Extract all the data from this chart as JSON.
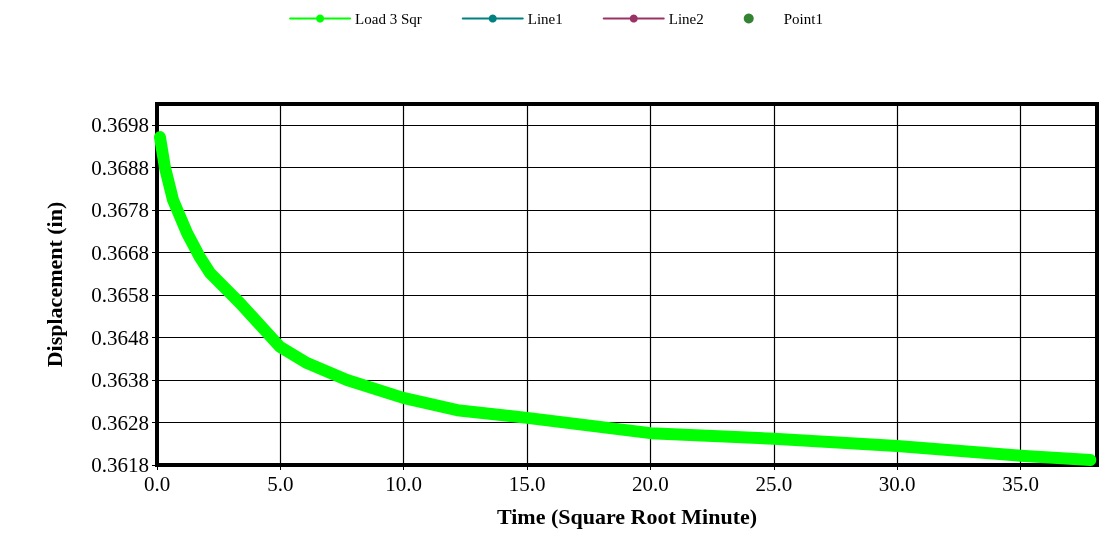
{
  "chart_data": {
    "type": "line",
    "xlabel": "Time (Square Root Minute)",
    "ylabel": "Displacement (in)",
    "xlim": [
      0,
      38.1
    ],
    "ylim": [
      0.3618,
      0.3703
    ],
    "xticks": [
      {
        "value": 0,
        "label": "0.0"
      },
      {
        "value": 5,
        "label": "5.0"
      },
      {
        "value": 10,
        "label": "10.0"
      },
      {
        "value": 15,
        "label": "15.0"
      },
      {
        "value": 20,
        "label": "20.0"
      },
      {
        "value": 25,
        "label": "25.0"
      },
      {
        "value": 30,
        "label": "30.0"
      },
      {
        "value": 35,
        "label": "35.0"
      }
    ],
    "yticks": [
      0.3618,
      0.3628,
      0.3638,
      0.3648,
      0.3658,
      0.3668,
      0.3678,
      0.3688,
      0.3698
    ],
    "grid": true,
    "legend": "top",
    "series": [
      {
        "name": "Load 3 Sqr",
        "color": "#00ff00",
        "x": [
          0.12,
          0.32,
          0.65,
          1.22,
          1.74,
          2.15,
          3.37,
          4.99,
          6.08,
          7.7,
          9.98,
          12.17,
          15,
          20,
          25,
          30,
          35,
          37.83
        ],
        "values": [
          0.36952,
          0.36881,
          0.36804,
          0.36726,
          0.36669,
          0.36632,
          0.36561,
          0.36458,
          0.3642,
          0.3638,
          0.36338,
          0.36309,
          0.36291,
          0.36255,
          0.36242,
          0.36225,
          0.36202,
          0.36192
        ]
      },
      {
        "name": "Line1",
        "color": "#008080"
      },
      {
        "name": "Line2",
        "color": "#993366"
      },
      {
        "name": "Point1",
        "type": "scatter",
        "color": "#006400"
      }
    ]
  }
}
